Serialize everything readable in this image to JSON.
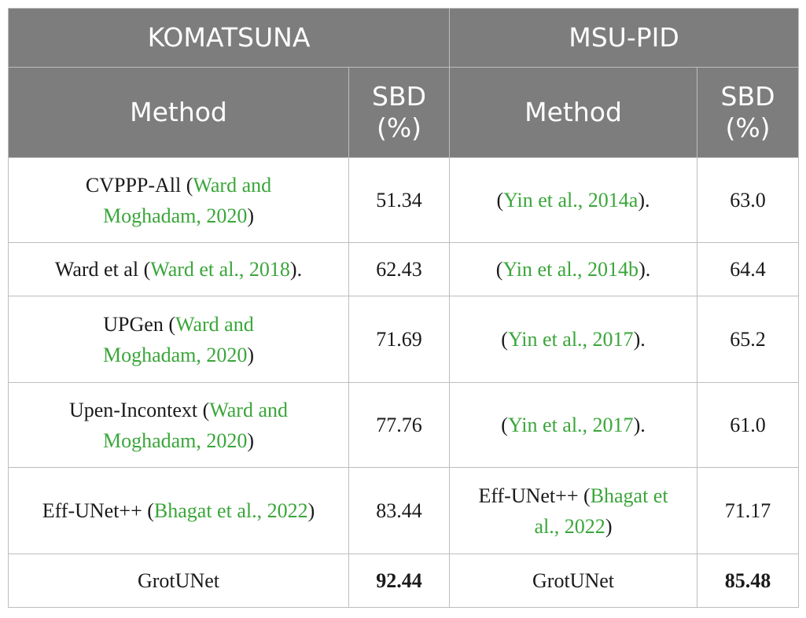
{
  "groups": [
    "KOMATSUNA",
    "MSU-PID"
  ],
  "subheaders": {
    "method": "Method",
    "sbd": "SBD (%)"
  },
  "rows": [
    {
      "k_pre": "CVPPP-All (",
      "k_ref": "Ward and Moghadam, 2020",
      "k_post": ")",
      "k_val": "51.34",
      "m_pre": "(",
      "m_ref": "Yin et al., 2014a",
      "m_post": ").",
      "m_val": "63.0"
    },
    {
      "k_pre": "Ward et al (",
      "k_ref": "Ward et al., 2018",
      "k_post": ").",
      "k_val": "62.43",
      "m_pre": "(",
      "m_ref": "Yin et al., 2014b",
      "m_post": ").",
      "m_val": "64.4"
    },
    {
      "k_pre": "UPGen (",
      "k_ref": "Ward and Moghadam, 2020",
      "k_post": ")",
      "k_val": "71.69",
      "m_pre": "(",
      "m_ref": "Yin et al., 2017",
      "m_post": ").",
      "m_val": "65.2"
    },
    {
      "k_pre": "Upen-Incontext (",
      "k_ref": "Ward and Moghadam, 2020",
      "k_post": ")",
      "k_val": "77.76",
      "m_pre": "(",
      "m_ref": "Yin et al., 2017",
      "m_post": ").",
      "m_val": "61.0"
    },
    {
      "k_pre": "Eff-UNet++ (",
      "k_ref": "Bhagat et al., 2022",
      "k_post": ")",
      "k_val": "83.44",
      "m_pre": "Eff-UNet++ (",
      "m_ref": "Bhagat et al., 2022",
      "m_post": ")",
      "m_val": "71.17"
    },
    {
      "k_pre": "GrotUNet",
      "k_ref": "",
      "k_post": "",
      "k_val": "92.44",
      "m_pre": "GrotUNet",
      "m_ref": "",
      "m_post": "",
      "m_val": "85.48"
    }
  ]
}
